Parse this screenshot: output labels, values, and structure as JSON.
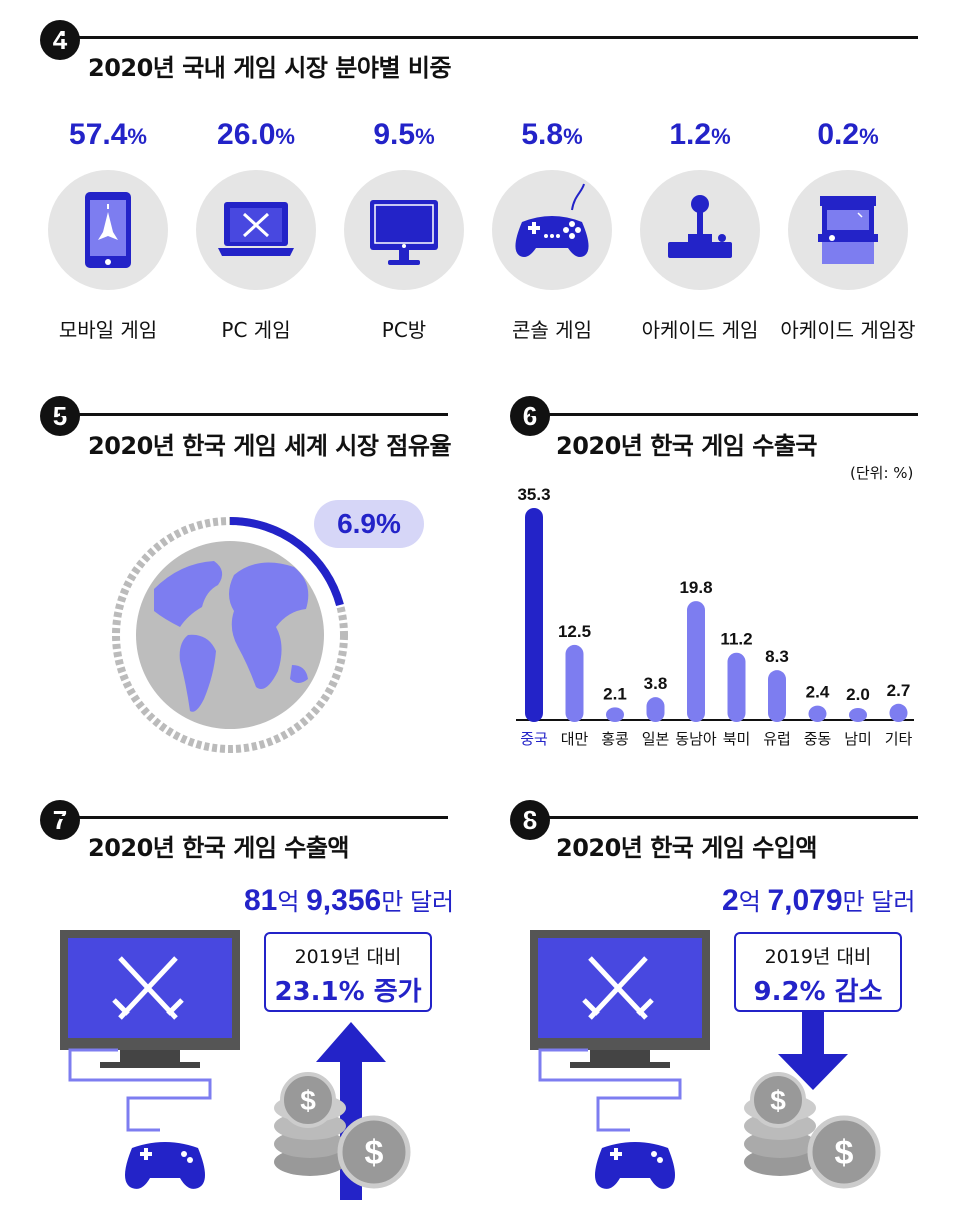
{
  "colors": {
    "accent": "#2323c8",
    "bar_light": "#7d7df0",
    "circle_bg": "#e5e5e5",
    "globe_land": "#7d7df0",
    "globe_sea": "#bdbdbd"
  },
  "section4": {
    "number": "4",
    "title": "2020년 국내 게임 시장 분야별 비중",
    "items": [
      {
        "value": "57.4",
        "unit": "%",
        "label": "모바일 게임",
        "icon": "smartphone-icon"
      },
      {
        "value": "26.0",
        "unit": "%",
        "label": "PC 게임",
        "icon": "laptop-icon"
      },
      {
        "value": "9.5",
        "unit": "%",
        "label": "PC방",
        "icon": "monitor-icon"
      },
      {
        "value": "5.8",
        "unit": "%",
        "label": "콘솔 게임",
        "icon": "gamepad-icon"
      },
      {
        "value": "1.2",
        "unit": "%",
        "label": "아케이드 게임",
        "icon": "joystick-icon"
      },
      {
        "value": "0.2",
        "unit": "%",
        "label": "아케이드 게임장",
        "icon": "arcade-machine-icon"
      }
    ]
  },
  "section5": {
    "number": "5",
    "title": "2020년 한국 게임 세계 시장 점유율",
    "share": "6.9%",
    "share_value": 6.9
  },
  "section6": {
    "number": "6",
    "title": "2020년 한국 게임 수출국",
    "unit": "(단위: %)"
  },
  "chart_data": {
    "type": "bar",
    "title": "2020년 한국 게임 수출국",
    "unit": "(단위: %)",
    "categories": [
      "중국",
      "대만",
      "홍콩",
      "일본",
      "동남아",
      "북미",
      "유럽",
      "중동",
      "남미",
      "기타"
    ],
    "values": [
      35.3,
      12.5,
      2.1,
      3.8,
      19.8,
      11.2,
      8.3,
      2.4,
      2.0,
      2.7
    ],
    "value_labels": [
      "35.3",
      "12.5",
      "2.1",
      "3.8",
      "19.8",
      "11.2",
      "8.3",
      "2.4",
      "2.0",
      "2.7"
    ],
    "highlight_index": 0,
    "ylim": [
      0,
      35.3
    ],
    "grid": false
  },
  "section7": {
    "number": "7",
    "title": "2020년 한국 게임 수출액",
    "amount": {
      "a": "81",
      "b": "억 ",
      "c": "9,356",
      "d": "만 달러"
    },
    "compare": "2019년 대비",
    "change": "23.1% 증가",
    "direction": "up"
  },
  "section8": {
    "number": "8",
    "title": "2020년 한국 게임 수입액",
    "amount": {
      "a": "2",
      "b": "억 ",
      "c": "7,079",
      "d": "만 달러"
    },
    "compare": "2019년 대비",
    "change": "9.2% 감소",
    "direction": "down"
  }
}
